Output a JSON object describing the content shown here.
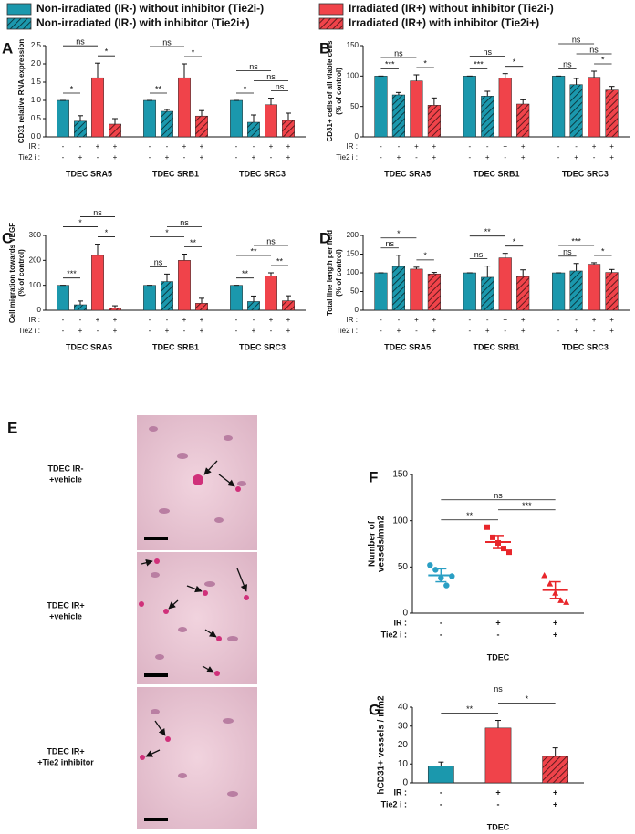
{
  "legend": [
    {
      "name": "Non-irradiated (IR-) without inhibitor (Tie2i-)",
      "color": "#1b98ad",
      "hatch": false
    },
    {
      "name": "Irradiated (IR+) without inhibitor (Tie2i-)",
      "color": "#f0434a",
      "hatch": false
    },
    {
      "name": "Non-irradiated (IR-) with inhibitor (Tie2i+)",
      "color": "#1b98ad",
      "hatch": true
    },
    {
      "name": "Irradiated (IR+) with inhibitor (Tie2i+)",
      "color": "#f0434a",
      "hatch": true
    }
  ],
  "panel_e": {
    "panel": "E",
    "images": [
      {
        "lines": [
          "TDEC IR-",
          "+vehicle"
        ]
      },
      {
        "lines": [
          "TDEC IR+",
          "+vehicle"
        ]
      },
      {
        "lines": [
          "TDEC IR+",
          "+Tie2 inhibitor"
        ]
      }
    ]
  },
  "chart_data": [
    {
      "type": "bar",
      "panel": "A",
      "ylabel": [
        "CD31 relative RNA expression"
      ],
      "ylim": [
        0,
        2.5
      ],
      "yticks": [
        {
          "value": 0,
          "label": "0.0"
        },
        0.5,
        {
          "value": 1,
          "label": "1.0"
        },
        1.5,
        {
          "value": 2,
          "label": "2.0"
        },
        2.5
      ],
      "categories": [
        "TDEC SRA5",
        "TDEC SRB1",
        "TDEC SRC3"
      ],
      "rows": [
        {
          "label": "IR :",
          "signs": [
            "-",
            "-",
            "+",
            "+"
          ]
        },
        {
          "label": "Tie2 i :",
          "signs": [
            "-",
            "+",
            "-",
            "+"
          ]
        }
      ],
      "series": [
        {
          "color": "#1b98ad",
          "hatch": false,
          "values": [
            1,
            1,
            1
          ],
          "errors": [
            0,
            0,
            0
          ]
        },
        {
          "color": "#1b98ad",
          "hatch": true,
          "values": [
            0.43,
            0.7,
            0.4
          ],
          "errors": [
            0.15,
            0.05,
            0.2
          ]
        },
        {
          "color": "#f0434a",
          "hatch": false,
          "values": [
            1.62,
            1.62,
            0.88
          ],
          "errors": [
            0.4,
            0.38,
            0.18
          ]
        },
        {
          "color": "#f0434a",
          "hatch": true,
          "values": [
            0.35,
            0.57,
            0.45
          ],
          "errors": [
            0.15,
            0.15,
            0.2
          ]
        }
      ],
      "significance": [
        [
          {
            "text": "*",
            "from": 0,
            "to": 1
          },
          {
            "text": "*",
            "from": 2,
            "to": 3
          },
          {
            "text": "ns",
            "from": 0,
            "to": 2
          }
        ],
        [
          {
            "text": "**",
            "from": 0,
            "to": 1
          },
          {
            "text": "*",
            "from": 2,
            "to": 3
          },
          {
            "text": "ns",
            "from": 0,
            "to": 2
          }
        ],
        [
          {
            "text": "*",
            "from": 0,
            "to": 1
          },
          {
            "text": "ns",
            "from": 2,
            "to": 3
          },
          {
            "text": "ns",
            "from": 1,
            "to": 3
          },
          {
            "text": "ns",
            "from": 0,
            "to": 2
          }
        ]
      ]
    },
    {
      "type": "bar",
      "panel": "B",
      "ylabel": [
        "CD31+ cells of all viable cells",
        "(% of control)"
      ],
      "ylim": [
        0,
        150
      ],
      "yticks": [
        0,
        50,
        100,
        150
      ],
      "categories": [
        "TDEC SRA5",
        "TDEC SRB1",
        "TDEC SRC3"
      ],
      "rows": [
        {
          "label": "IR :",
          "signs": [
            "-",
            "-",
            "+",
            "+"
          ]
        },
        {
          "label": "Tie2 i :",
          "signs": [
            "-",
            "+",
            "-",
            "+"
          ]
        }
      ],
      "series": [
        {
          "color": "#1b98ad",
          "hatch": false,
          "values": [
            100,
            100,
            100
          ],
          "errors": [
            0,
            0,
            0
          ]
        },
        {
          "color": "#1b98ad",
          "hatch": true,
          "values": [
            69,
            67,
            86
          ],
          "errors": [
            4,
            8,
            10
          ]
        },
        {
          "color": "#f0434a",
          "hatch": false,
          "values": [
            92,
            97,
            98
          ],
          "errors": [
            10,
            7,
            10
          ]
        },
        {
          "color": "#f0434a",
          "hatch": true,
          "values": [
            52,
            54,
            77
          ],
          "errors": [
            12,
            7,
            6
          ]
        }
      ],
      "significance": [
        [
          {
            "text": "***",
            "from": 0,
            "to": 1
          },
          {
            "text": "*",
            "from": 2,
            "to": 3
          },
          {
            "text": "ns",
            "from": 0,
            "to": 2
          }
        ],
        [
          {
            "text": "***",
            "from": 0,
            "to": 1
          },
          {
            "text": "*",
            "from": 2,
            "to": 3
          },
          {
            "text": "ns",
            "from": 0,
            "to": 2
          }
        ],
        [
          {
            "text": "ns",
            "from": 0,
            "to": 1
          },
          {
            "text": "*",
            "from": 2,
            "to": 3
          },
          {
            "text": "ns",
            "from": 1,
            "to": 3
          },
          {
            "text": "ns",
            "from": 0,
            "to": 2
          }
        ]
      ]
    },
    {
      "type": "bar",
      "panel": "C",
      "ylabel": [
        "Cell migration towards VEGF",
        "(% of control)"
      ],
      "ylim": [
        0,
        300
      ],
      "yticks": [
        0,
        100,
        200,
        300
      ],
      "categories": [
        "TDEC SRA5",
        "TDEC SRB1",
        "TDEC SRC3"
      ],
      "rows": [
        {
          "label": "IR :",
          "signs": [
            "-",
            "-",
            "+",
            "+"
          ]
        },
        {
          "label": "Tie2 i :",
          "signs": [
            "-",
            "+",
            "-",
            "+"
          ]
        }
      ],
      "series": [
        {
          "color": "#1b98ad",
          "hatch": false,
          "values": [
            100,
            100,
            100
          ],
          "errors": [
            0,
            0,
            0
          ]
        },
        {
          "color": "#1b98ad",
          "hatch": true,
          "values": [
            22,
            115,
            35
          ],
          "errors": [
            15,
            30,
            22
          ]
        },
        {
          "color": "#f0434a",
          "hatch": false,
          "values": [
            220,
            200,
            138
          ],
          "errors": [
            45,
            25,
            12
          ]
        },
        {
          "color": "#f0434a",
          "hatch": true,
          "values": [
            10,
            28,
            38
          ],
          "errors": [
            8,
            20,
            20
          ]
        }
      ],
      "significance": [
        [
          {
            "text": "***",
            "from": 0,
            "to": 1
          },
          {
            "text": "*",
            "from": 2,
            "to": 3
          },
          {
            "text": "*",
            "from": 0,
            "to": 2
          },
          {
            "text": "ns",
            "from": 1,
            "to": 3
          }
        ],
        [
          {
            "text": "ns",
            "from": 0,
            "to": 1
          },
          {
            "text": "**",
            "from": 2,
            "to": 3
          },
          {
            "text": "*",
            "from": 0,
            "to": 2
          },
          {
            "text": "ns",
            "from": 1,
            "to": 3
          }
        ],
        [
          {
            "text": "**",
            "from": 0,
            "to": 1
          },
          {
            "text": "**",
            "from": 2,
            "to": 3
          },
          {
            "text": "**",
            "from": 0,
            "to": 2
          },
          {
            "text": "ns",
            "from": 1,
            "to": 3
          }
        ]
      ]
    },
    {
      "type": "bar",
      "panel": "D",
      "ylabel": [
        "Total line length per field",
        "(% of control)"
      ],
      "ylim": [
        0,
        200
      ],
      "yticks": [
        0,
        50,
        100,
        150,
        200
      ],
      "categories": [
        "TDEC SRA5",
        "TDEC SRB1",
        "TDEC SRC3"
      ],
      "rows": [
        {
          "label": "IR :",
          "signs": [
            "-",
            "-",
            "+",
            "+"
          ]
        },
        {
          "label": "Tie2 i :",
          "signs": [
            "-",
            "+",
            "-",
            "+"
          ]
        }
      ],
      "series": [
        {
          "color": "#1b98ad",
          "hatch": false,
          "values": [
            100,
            100,
            100
          ],
          "errors": [
            0,
            0,
            0
          ]
        },
        {
          "color": "#1b98ad",
          "hatch": true,
          "values": [
            117,
            88,
            105
          ],
          "errors": [
            30,
            30,
            20
          ]
        },
        {
          "color": "#f0434a",
          "hatch": false,
          "values": [
            110,
            140,
            123
          ],
          "errors": [
            5,
            12,
            4
          ]
        },
        {
          "color": "#f0434a",
          "hatch": true,
          "values": [
            97,
            90,
            101
          ],
          "errors": [
            4,
            18,
            8
          ]
        }
      ],
      "significance": [
        [
          {
            "text": "ns",
            "from": 0,
            "to": 1
          },
          {
            "text": "*",
            "from": 2,
            "to": 3
          },
          {
            "text": "*",
            "from": 0,
            "to": 2
          }
        ],
        [
          {
            "text": "ns",
            "from": 0,
            "to": 1
          },
          {
            "text": "*",
            "from": 2,
            "to": 3
          },
          {
            "text": "**",
            "from": 0,
            "to": 2
          }
        ],
        [
          {
            "text": "ns",
            "from": 0,
            "to": 1
          },
          {
            "text": "*",
            "from": 2,
            "to": 3
          },
          {
            "text": "***",
            "from": 0,
            "to": 2
          }
        ]
      ]
    },
    {
      "type": "scatter",
      "panel": "F",
      "ylabel": [
        "Number of",
        "vessels/mm2"
      ],
      "ylim": [
        0,
        150
      ],
      "yticks": [
        0,
        50,
        100,
        150
      ],
      "categories": [
        null,
        null,
        null
      ],
      "xlabel": "TDEC",
      "rows": [
        {
          "label": "IR :",
          "signs": [
            "-",
            "+",
            "+"
          ]
        },
        {
          "label": "Tie2 i :",
          "signs": [
            "-",
            "-",
            "+"
          ]
        }
      ],
      "colors": [
        "#2a9fc4",
        "#e8262b",
        "#e8262b"
      ],
      "markers": [
        "circle",
        "square",
        "triangle"
      ],
      "points": [
        [
          52,
          47,
          38,
          30,
          40
        ],
        [
          93,
          82,
          76,
          70,
          66
        ],
        [
          41,
          32,
          22,
          14,
          12
        ]
      ],
      "means": [
        41,
        77,
        25
      ],
      "errors": [
        7,
        7,
        9
      ],
      "significance": [
        {
          "text": "**",
          "from": 0,
          "to": 1
        },
        {
          "text": "***",
          "from": 1,
          "to": 2
        },
        {
          "text": "ns",
          "from": 0,
          "to": 2
        }
      ]
    },
    {
      "type": "bar",
      "panel": "G",
      "ylabel": [
        "hCD31+ vessels / mm2"
      ],
      "ylim": [
        0,
        40
      ],
      "yticks": [
        0,
        10,
        20,
        30,
        40
      ],
      "categories": [
        null,
        null,
        null
      ],
      "xlabel": "TDEC",
      "rows": [
        {
          "label": "IR :",
          "signs": [
            "-",
            "+",
            "+"
          ]
        },
        {
          "label": "Tie2 i :",
          "signs": [
            "-",
            "-",
            "+"
          ]
        }
      ],
      "values": [
        9,
        29,
        14
      ],
      "errors": [
        2,
        4,
        4.5
      ],
      "colors": [
        "#1b98ad",
        "#f0434a",
        "#f0434a"
      ],
      "hatch": [
        false,
        false,
        true
      ],
      "significance": [
        {
          "text": "**",
          "from": 0,
          "to": 1
        },
        {
          "text": "*",
          "from": 1,
          "to": 2
        },
        {
          "text": "ns",
          "from": 0,
          "to": 2
        }
      ]
    }
  ]
}
